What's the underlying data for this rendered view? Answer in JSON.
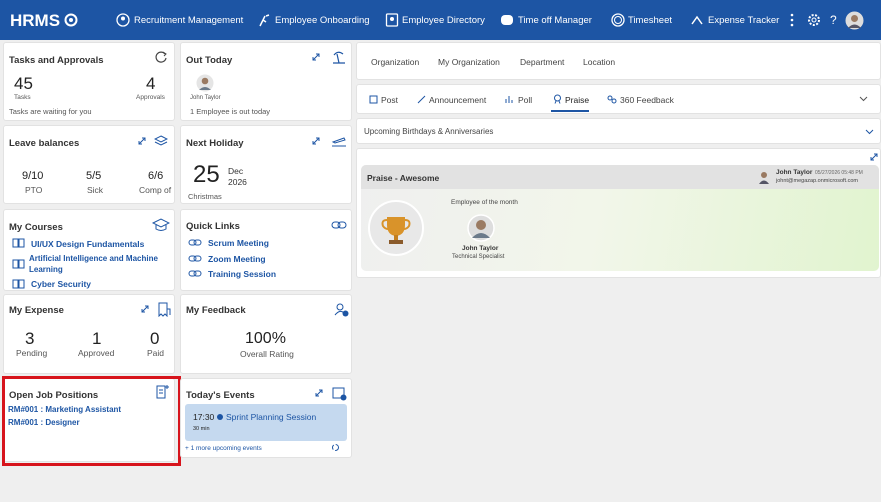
{
  "header": {
    "logo": "HRMS",
    "nav": [
      "Recruitment Management",
      "Employee Onboarding",
      "Employee Directory",
      "Time off Manager",
      "Timesheet",
      "Expense Tracker"
    ],
    "help": "?"
  },
  "cards": {
    "tasks": {
      "title": "Tasks and Approvals",
      "tasks_count": "45",
      "tasks_label": "Tasks",
      "approvals_count": "4",
      "approvals_label": "Approvals",
      "note": "Tasks are waiting for you"
    },
    "out_today": {
      "title": "Out Today",
      "name": "John Taylor",
      "note": "1 Employee is out today"
    },
    "leave": {
      "title": "Leave balances",
      "items": [
        {
          "value": "9/10",
          "label": "PTO"
        },
        {
          "value": "5/5",
          "label": "Sick"
        },
        {
          "value": "6/6",
          "label": "Comp of"
        }
      ]
    },
    "holiday": {
      "title": "Next Holiday",
      "day": "25",
      "month": "Dec",
      "year": "2026",
      "name": "Christmas"
    },
    "courses": {
      "title": "My Courses",
      "items": [
        "UI/UX Design Fundamentals",
        "Artificial Intelligence and Machine Learning",
        "Cyber Security"
      ]
    },
    "links": {
      "title": "Quick Links",
      "items": [
        "Scrum Meeting",
        "Zoom Meeting",
        "Training Session"
      ]
    },
    "expense": {
      "title": "My Expense",
      "items": [
        {
          "value": "3",
          "label": "Pending"
        },
        {
          "value": "1",
          "label": "Approved"
        },
        {
          "value": "0",
          "label": "Paid"
        }
      ]
    },
    "feedback": {
      "title": "My Feedback",
      "value": "100%",
      "label": "Overall Rating"
    },
    "jobs": {
      "title": "Open Job Positions",
      "items": [
        "RM#001 : Marketing Assistant",
        "RM#001 : Designer"
      ]
    },
    "events": {
      "title": "Today's Events",
      "time": "17:30",
      "duration": "30 min",
      "name": "Sprint Planning Session",
      "more": "+ 1 more upcoming events"
    }
  },
  "feed": {
    "org_tabs": [
      "Organization",
      "My Organization",
      "Department",
      "Location"
    ],
    "post_tabs": [
      "Post",
      "Announcement",
      "Poll",
      "Praise",
      "360 Feedback"
    ],
    "birthdays": "Upcoming Birthdays & Anniversaries",
    "praise": {
      "title": "Praise - Awesome",
      "author": "John Taylor",
      "date": "05/27/2026 05:48 PM",
      "email": "johnt@megazap.onmicrosoft.com",
      "caption": "Employee of the month",
      "name": "John Taylor",
      "role": "Technical Specialist"
    }
  }
}
